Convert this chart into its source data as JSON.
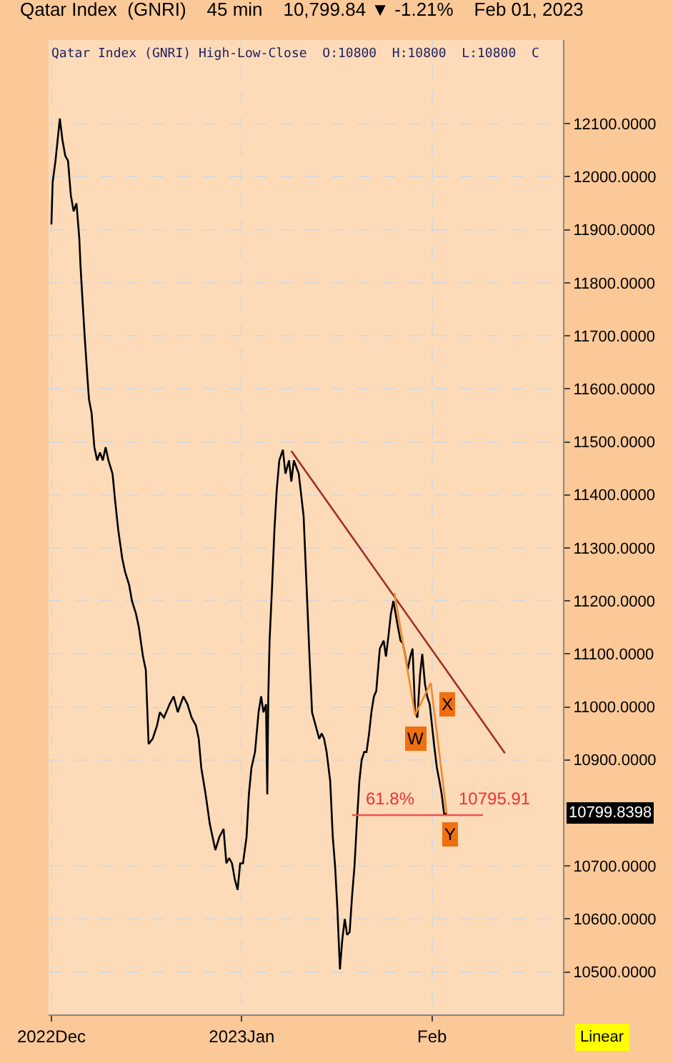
{
  "chart_data": {
    "type": "line",
    "title": "Qatar Index  (GNRI)    45 min    10,799.84 ▼ -1.21%    Feb 01, 2023",
    "subtitle": "Qatar Index (GNRI) High-Low-Close  O:10800  H:10800  L:10800  C",
    "x": [
      "2022-12-01T00:00",
      "2022-12-01T05:00",
      "2022-12-01T16:00",
      "2022-12-02T09:00",
      "2022-12-02T19:00",
      "2022-12-03T06:00",
      "2022-12-03T17:00",
      "2022-12-04T04:00",
      "2022-12-04T15:00",
      "2022-12-05T02:00",
      "2022-12-05T13:00",
      "2022-12-05T18:00",
      "2022-12-06T05:00",
      "2022-12-06T10:00",
      "2022-12-06T21:00",
      "2022-12-07T03:00",
      "2022-12-07T13:00",
      "2022-12-08T00:00",
      "2022-12-08T11:00",
      "2022-12-08T22:00",
      "2022-12-09T09:00",
      "2022-12-09T20:00",
      "2022-12-10T07:00",
      "2022-12-10T23:00",
      "2022-12-11T10:00",
      "2022-12-11T21:00",
      "2022-12-12T13:00",
      "2022-12-13T00:00",
      "2022-12-13T16:00",
      "2022-12-14T03:00",
      "2022-12-14T19:00",
      "2022-12-15T06:00",
      "2022-12-15T22:00",
      "2022-12-16T09:00",
      "2022-12-16T20:00",
      "2022-12-17T12:00",
      "2022-12-18T05:00",
      "2022-12-18T16:00",
      "2022-12-19T08:00",
      "2022-12-20T06:00",
      "2022-12-20T22:00",
      "2022-12-21T14:00",
      "2022-12-22T12:00",
      "2022-12-23T04:00",
      "2022-12-23T20:00",
      "2022-12-24T13:00",
      "2022-12-25T00:00",
      "2022-12-25T10:00",
      "2022-12-26T03:00",
      "2022-12-26T19:00",
      "2022-12-27T06:00",
      "2022-12-27T17:00",
      "2022-12-28T09:00",
      "2022-12-29T01:00",
      "2022-12-29T12:00",
      "2022-12-29T23:00",
      "2022-12-30T10:00",
      "2022-12-30T21:00",
      "2022-12-31T08:00",
      "2022-12-31T18:00",
      "2023-01-01T05:00",
      "2023-01-01T19:00",
      "2023-01-02T04:00",
      "2023-01-02T14:00",
      "2023-01-03T04:00",
      "2023-01-03T18:00",
      "2023-01-04T04:00",
      "2023-01-04T13:00",
      "2023-01-04T23:00",
      "2023-01-05T04:00",
      "2023-01-05T08:00",
      "2023-01-05T13:00",
      "2023-01-05T23:00",
      "2023-01-06T08:00",
      "2023-01-06T17:00",
      "2023-01-07T03:00",
      "2023-01-07T17:00",
      "2023-01-08T03:00",
      "2023-01-08T17:00",
      "2023-01-09T02:00",
      "2023-01-09T12:00",
      "2023-01-10T07:00",
      "2023-01-11T02:00",
      "2023-01-11T16:00",
      "2023-01-12T01:00",
      "2023-01-12T11:00",
      "2023-01-13T01:00",
      "2023-01-13T15:00",
      "2023-01-14T01:00",
      "2023-01-14T10:00",
      "2023-01-14T20:00",
      "2023-01-15T10:00",
      "2023-01-15T20:00",
      "2023-01-16T05:00",
      "2023-01-16T14:00",
      "2023-01-17T00:00",
      "2023-01-17T09:00",
      "2023-01-17T19:00",
      "2023-01-18T04:00",
      "2023-01-18T14:00",
      "2023-01-18T23:00",
      "2023-01-19T09:00",
      "2023-01-19T18:00",
      "2023-01-20T04:00",
      "2023-01-20T13:00",
      "2023-01-20T23:00",
      "2023-01-21T08:00",
      "2023-01-21T18:00",
      "2023-01-22T03:00",
      "2023-01-22T13:00",
      "2023-01-22T22:00",
      "2023-01-23T12:00",
      "2023-01-24T03:00",
      "2023-01-24T12:00",
      "2023-01-24T22:00",
      "2023-01-25T07:00",
      "2023-01-25T17:00",
      "2023-01-26T02:00",
      "2023-01-26T11:00",
      "2023-01-26T21:00",
      "2023-01-27T06:00",
      "2023-01-27T16:00",
      "2023-01-28T01:00",
      "2023-01-28T11:00",
      "2023-01-28T20:00",
      "2023-01-29T06:00",
      "2023-01-29T15:00",
      "2023-01-30T01:00",
      "2023-01-30T10:00",
      "2023-01-30T20:00",
      "2023-01-31T05:00",
      "2023-01-31T15:00",
      "2023-02-01T00:00",
      "2023-02-01T09:00",
      "2023-02-01T19:00",
      "2023-02-02T05:00",
      "2023-02-02T14:00",
      "2023-02-03T00:00",
      "2023-02-03T09:00"
    ],
    "series": [
      {
        "color": "#000000",
        "values": [
          11910,
          11990,
          12030,
          12110,
          12070,
          12040,
          12030,
          11965,
          11935,
          11950,
          11885,
          11830,
          11740,
          11700,
          11620,
          11580,
          11555,
          11490,
          11465,
          11480,
          11465,
          11490,
          11465,
          11440,
          11385,
          11335,
          11280,
          11255,
          11230,
          11200,
          11175,
          11150,
          11095,
          11070,
          10930,
          10940,
          10965,
          10990,
          10980,
          11005,
          11020,
          10990,
          11020,
          11005,
          10980,
          10965,
          10940,
          10885,
          10835,
          10780,
          10755,
          10730,
          10755,
          10770,
          10705,
          10715,
          10705,
          10675,
          10655,
          10705,
          10705,
          10755,
          10835,
          10885,
          10915,
          10990,
          11020,
          10990,
          11005,
          10835,
          11020,
          11125,
          11230,
          11335,
          11410,
          11465,
          11485,
          11440,
          11465,
          11425,
          11465,
          11440,
          11360,
          11200,
          11095,
          10990,
          10965,
          10940,
          10950,
          10940,
          10915,
          10860,
          10755,
          10700,
          10620,
          10505,
          10560,
          10600,
          10570,
          10575,
          10640,
          10700,
          10780,
          10860,
          10900,
          10915,
          10915,
          10950,
          10990,
          11020,
          11030,
          11110,
          11125,
          11095,
          11135,
          11175,
          11200,
          11175,
          11150,
          11125,
          11120,
          11095,
          11070,
          11095,
          11110,
          10990,
          10980,
          11060,
          11100,
          11045,
          11020,
          11005,
          10965,
          10925,
          10885,
          10860,
          10835,
          10795,
          10800
        ]
      },
      {
        "color": "#a0302a",
        "x": [
          "2023-01-09T02:00",
          "2023-02-12T21:00"
        ],
        "values": [
          11483,
          10913
        ]
      },
      {
        "color": "#f08a30",
        "x": [
          "2023-01-25T21:00",
          "2023-01-29T06:00",
          "2023-01-31T19:00",
          "2023-02-03T09:00"
        ],
        "values": [
          11215,
          10985,
          11045,
          10800
        ]
      },
      {
        "color": "#f05050",
        "x": [
          "2023-01-18T23:00",
          "2023-02-09T07:00"
        ],
        "values": [
          10795.91,
          10795.91
        ]
      }
    ],
    "annotations": [
      "61.8%",
      "10795.91",
      "10799.8398",
      "Linear",
      {
        "text": "W",
        "x": "2023-01-29T06:00",
        "y": 10940
      },
      {
        "text": "X",
        "x": "2023-02-03T12:00",
        "y": 11005
      },
      {
        "text": "Y",
        "x": "2023-02-03T23:00",
        "y": 10760
      }
    ],
    "xlim": [
      "2022-11-30T13:00",
      "2023-02-22T08:00"
    ],
    "xticks": [
      {
        "value": "2022-12-01",
        "label": "2022Dec"
      },
      {
        "value": "2023-01-01",
        "label": "2023Jan"
      },
      {
        "value": "2023-02-01",
        "label": "Feb"
      }
    ],
    "ylim": [
      10420,
      12258
    ],
    "yticks": [
      {
        "value": 10500,
        "label": "10500.0000"
      },
      {
        "value": 10600,
        "label": "10600.0000"
      },
      {
        "value": 10700,
        "label": "10700.0000"
      },
      {
        "value": 10900,
        "label": "10900.0000"
      },
      {
        "value": 11000,
        "label": "11000.0000"
      },
      {
        "value": 11100,
        "label": "11100.0000"
      },
      {
        "value": 11200,
        "label": "11200.0000"
      },
      {
        "value": 11300,
        "label": "11300.0000"
      },
      {
        "value": 11400,
        "label": "11400.0000"
      },
      {
        "value": 11500,
        "label": "11500.0000"
      },
      {
        "value": 11600,
        "label": "11600.0000"
      },
      {
        "value": 11700,
        "label": "11700.0000"
      },
      {
        "value": 11800,
        "label": "11800.0000"
      },
      {
        "value": 11900,
        "label": "11900.0000"
      },
      {
        "value": 12000,
        "label": "12000.0000"
      },
      {
        "value": 12100,
        "label": "12100.0000"
      }
    ],
    "grid": true,
    "line_style": "solid",
    "legend": false
  }
}
